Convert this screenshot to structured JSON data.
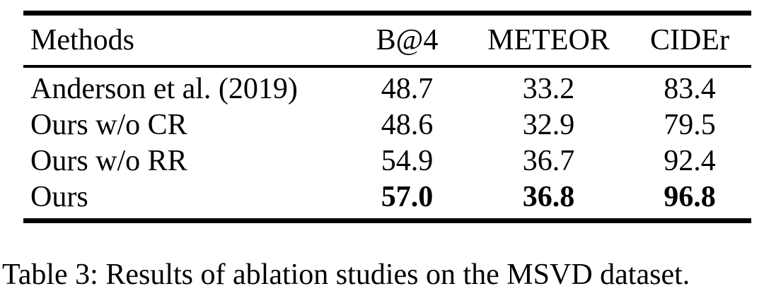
{
  "table": {
    "columns": [
      "Methods",
      "B@4",
      "METEOR",
      "CIDEr"
    ],
    "rows": [
      {
        "method": "Anderson et al. (2019)",
        "b4": "48.7",
        "meteor": "33.2",
        "cider": "83.4"
      },
      {
        "method": "Ours w/o CR",
        "b4": "48.6",
        "meteor": "32.9",
        "cider": "79.5"
      },
      {
        "method": "Ours w/o RR",
        "b4": "54.9",
        "meteor": "36.7",
        "cider": "92.4"
      },
      {
        "method": "Ours",
        "b4": "57.0",
        "meteor": "36.8",
        "cider": "96.8"
      }
    ]
  },
  "caption": "Table 3: Results of ablation studies on the MSVD dataset.",
  "colors": {
    "text": "#000000",
    "background": "#ffffff",
    "rule": "#000000"
  }
}
